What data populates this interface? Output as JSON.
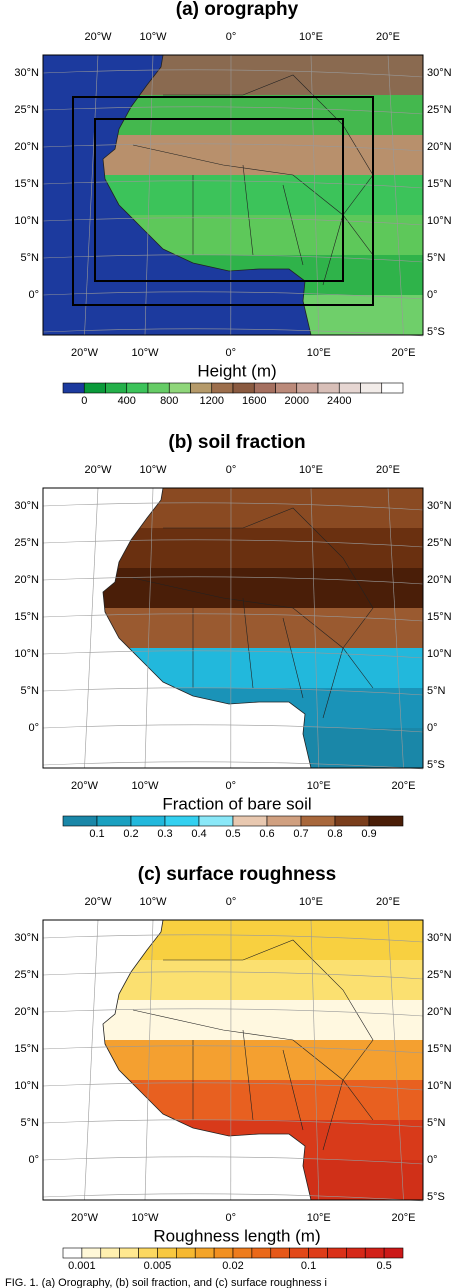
{
  "figure": {
    "panels": [
      {
        "title": "(a)  orography",
        "lon_labels": [
          "20°W",
          "10°W",
          "0°",
          "10°E",
          "20°E"
        ],
        "lat_labels_left": [
          "30°N",
          "25°N",
          "20°N",
          "15°N",
          "10°N",
          "5°N",
          "0°"
        ],
        "lat_labels_right": [
          "30°N",
          "25°N",
          "20°N",
          "15°N",
          "10°N",
          "5°N",
          "0°",
          "5°S"
        ],
        "ocean": "#1c3a9e",
        "land_colors": [
          "#8a6a50",
          "#44b84e",
          "#b8906c",
          "#3cc35a",
          "#5ec85a",
          "#2fb34a",
          "#6fcf6a"
        ],
        "colorbar": {
          "title": "Height (m)",
          "ticks": [
            0,
            400,
            800,
            1200,
            1600,
            2000,
            2400
          ],
          "colors": [
            "#1c3a9e",
            "#0a9a3a",
            "#24b04a",
            "#3cc35a",
            "#66cc66",
            "#8fd67a",
            "#b59a6a",
            "#9c6e4c",
            "#8a5a40",
            "#a57060",
            "#bb8a7a",
            "#c9a49a",
            "#d8bfb8",
            "#e6d6d2",
            "#f2ece9",
            "#ffffff"
          ]
        }
      },
      {
        "title": "(b)  soil fraction",
        "lon_labels": [
          "20°W",
          "10°W",
          "0°",
          "10°E",
          "20°E"
        ],
        "lat_labels_left": [
          "30°N",
          "25°N",
          "20°N",
          "15°N",
          "10°N",
          "5°N",
          "0°"
        ],
        "lat_labels_right": [
          "30°N",
          "25°N",
          "20°N",
          "15°N",
          "10°N",
          "5°N",
          "0°",
          "5°S"
        ],
        "ocean": "#ffffff",
        "land_colors": [
          "#8a4a22",
          "#6a3010",
          "#4a1e08",
          "#9a5a30",
          "#22b8dc",
          "#1a93b8",
          "#1a87a8"
        ],
        "colorbar": {
          "title": "Fraction of bare soil",
          "ticks": [
            0.1,
            0.2,
            0.3,
            0.4,
            0.5,
            0.6,
            0.7,
            0.8,
            0.9
          ],
          "colors": [
            "#1a87a8",
            "#1aa0c0",
            "#22b8dc",
            "#33d0f0",
            "#8ae8f8",
            "#e8c8b0",
            "#d0a080",
            "#a8683c",
            "#7a3e1c",
            "#4a1e08"
          ]
        }
      },
      {
        "title": "(c)  surface roughness",
        "lon_labels": [
          "20°W",
          "10°W",
          "0°",
          "10°E",
          "20°E"
        ],
        "lat_labels_left": [
          "30°N",
          "25°N",
          "20°N",
          "15°N",
          "10°N",
          "5°N",
          "0°"
        ],
        "lat_labels_right": [
          "30°N",
          "25°N",
          "20°N",
          "15°N",
          "10°N",
          "5°N",
          "0°",
          "5°S"
        ],
        "ocean": "#ffffff",
        "land_colors": [
          "#f8d040",
          "#fbe070",
          "#fff8e0",
          "#f4a030",
          "#e86020",
          "#d83a1a",
          "#d03018"
        ],
        "colorbar": {
          "title": "Roughness length (m)",
          "ticks": [
            0.001,
            0.005,
            0.02,
            0.1,
            0.5
          ],
          "colors": [
            "#ffffff",
            "#fff8d8",
            "#fff0b0",
            "#ffe890",
            "#fcd860",
            "#f8c840",
            "#f6b830",
            "#f4a428",
            "#f29020",
            "#ee7c1c",
            "#ea6818",
            "#e65818",
            "#e24818",
            "#de3c18",
            "#da3018",
            "#d62818",
            "#d22018",
            "#cc1818"
          ]
        }
      }
    ],
    "caption": "FIG. 1. (a) Orography, (b) soil fraction, and (c) surface roughness i"
  }
}
